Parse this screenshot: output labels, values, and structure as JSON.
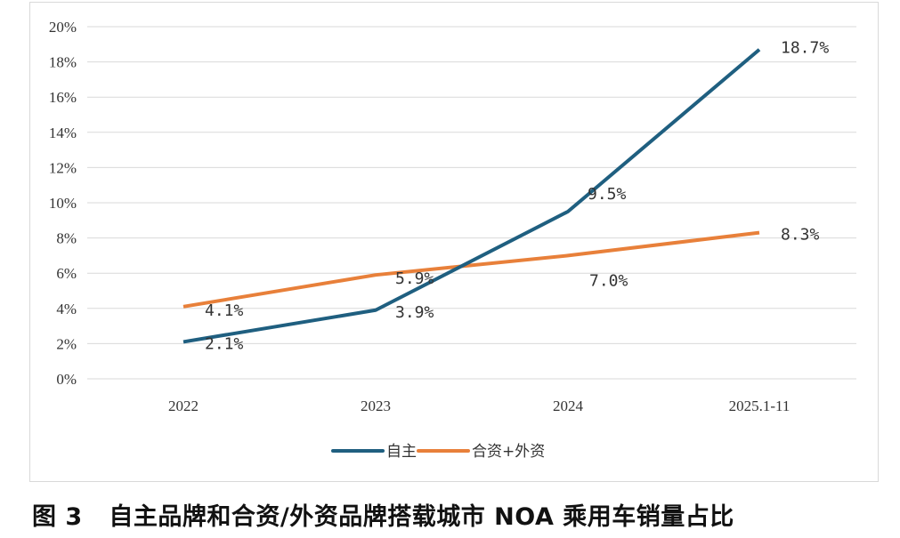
{
  "chart_data": {
    "type": "line",
    "categories": [
      "2022",
      "2023",
      "2024",
      "2025.1-11"
    ],
    "series": [
      {
        "name": "自主",
        "values": [
          2.1,
          3.9,
          9.5,
          18.7
        ],
        "labels": [
          "2.1%",
          "3.9%",
          "9.5%",
          "18.7%"
        ],
        "color": "#1f5f80"
      },
      {
        "name": "合资+外资",
        "values": [
          4.1,
          5.9,
          7.0,
          8.3
        ],
        "labels": [
          "4.1%",
          "5.9%",
          "7.0%",
          "8.3%"
        ],
        "color": "#e8803a"
      }
    ],
    "ylim": [
      0,
      20
    ],
    "yticks": [
      "0%",
      "2%",
      "4%",
      "6%",
      "8%",
      "10%",
      "12%",
      "14%",
      "16%",
      "18%",
      "20%"
    ],
    "grid": true,
    "legend": "bottom"
  },
  "caption": "图 3   自主品牌和合资/外资品牌搭载城市 NOA 乘用车销量占比"
}
